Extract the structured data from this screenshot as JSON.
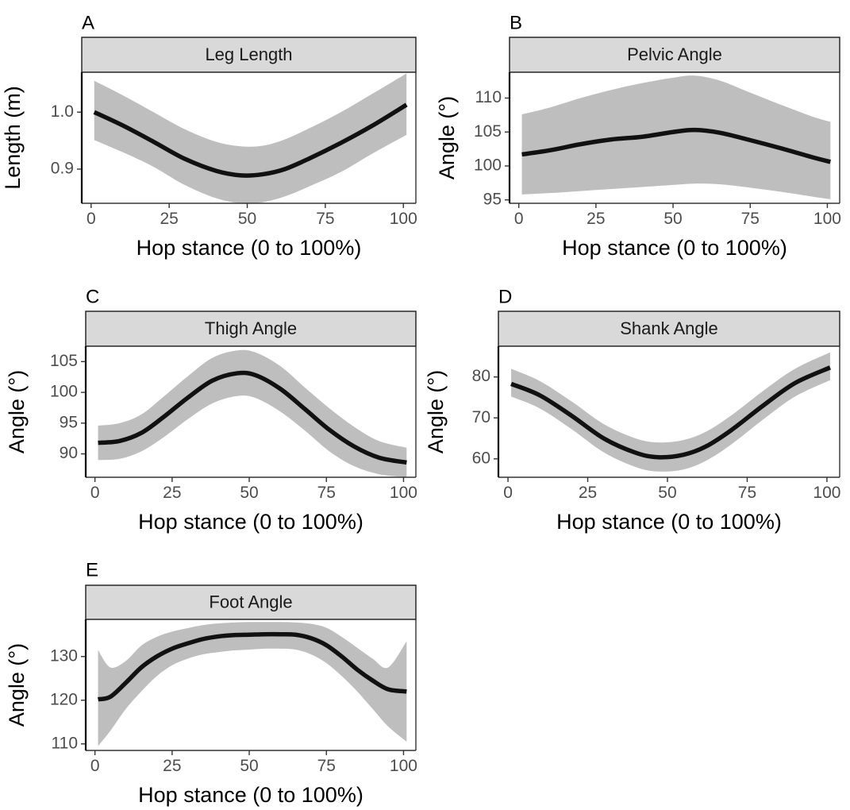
{
  "chart_data": [
    {
      "type": "line",
      "panel_label": "A",
      "title": "Leg Length",
      "xlabel": "Hop stance (0 to 100%)",
      "ylabel": "Length (m)",
      "xlim": [
        -3,
        104
      ],
      "ylim": [
        0.84,
        1.07
      ],
      "xticks": [
        0,
        25,
        50,
        75,
        100
      ],
      "xtick_labels": [
        "0",
        "25",
        "50",
        "75",
        "100"
      ],
      "yticks": [
        0.9,
        1.0
      ],
      "ytick_labels": [
        "0.9",
        "1.0"
      ],
      "grid": false,
      "series": [
        {
          "x": [
            1,
            10,
            20,
            30,
            40,
            48,
            55,
            62,
            70,
            80,
            90,
            101
          ],
          "y": [
            1.0,
            0.977,
            0.948,
            0.918,
            0.897,
            0.889,
            0.891,
            0.9,
            0.919,
            0.946,
            0.976,
            1.013
          ],
          "ci_lower": [
            0.951,
            0.93,
            0.904,
            0.872,
            0.849,
            0.84,
            0.842,
            0.852,
            0.87,
            0.895,
            0.927,
            0.96
          ],
          "ci_upper": [
            1.055,
            1.03,
            1.0,
            0.97,
            0.948,
            0.94,
            0.941,
            0.952,
            0.972,
            1.0,
            1.032,
            1.068
          ]
        }
      ]
    },
    {
      "type": "line",
      "panel_label": "B",
      "title": "Pelvic Angle",
      "xlabel": "Hop stance (0 to 100%)",
      "ylabel": "Angle  (°)",
      "xlim": [
        -3,
        104
      ],
      "ylim": [
        94.5,
        113.8
      ],
      "xticks": [
        0,
        25,
        50,
        75,
        100
      ],
      "xtick_labels": [
        "0",
        "25",
        "50",
        "75",
        "100"
      ],
      "yticks": [
        95,
        100,
        105,
        110
      ],
      "ytick_labels": [
        "95",
        "100",
        "105",
        "110"
      ],
      "grid": false,
      "series": [
        {
          "x": [
            1,
            10,
            20,
            30,
            40,
            50,
            57,
            65,
            75,
            85,
            95,
            101
          ],
          "y": [
            101.7,
            102.3,
            103.2,
            103.9,
            104.3,
            105.0,
            105.3,
            104.9,
            103.8,
            102.6,
            101.3,
            100.6
          ],
          "ci_lower": [
            95.8,
            96.0,
            96.3,
            96.6,
            96.9,
            97.2,
            97.4,
            97.3,
            96.8,
            96.2,
            95.5,
            95.1
          ],
          "ci_upper": [
            107.6,
            108.6,
            110.0,
            111.2,
            112.2,
            113.0,
            113.3,
            112.6,
            110.8,
            109.0,
            107.3,
            106.5
          ]
        }
      ]
    },
    {
      "type": "line",
      "panel_label": "C",
      "title": "Thigh Angle",
      "xlabel": "Hop stance (0 to 100%)",
      "ylabel": "Angle  (°)",
      "xlim": [
        -3,
        104
      ],
      "ylim": [
        86.2,
        107.5
      ],
      "xticks": [
        0,
        25,
        50,
        75,
        100
      ],
      "xtick_labels": [
        "0",
        "25",
        "50",
        "75",
        "100"
      ],
      "yticks": [
        90,
        95,
        100,
        105
      ],
      "ytick_labels": [
        "90",
        "95",
        "100",
        "105"
      ],
      "grid": false,
      "series": [
        {
          "x": [
            1,
            8,
            15,
            22,
            30,
            38,
            46,
            52,
            60,
            68,
            76,
            84,
            92,
            101
          ],
          "y": [
            91.8,
            92.1,
            93.4,
            95.9,
            99.1,
            101.9,
            103.1,
            102.8,
            100.6,
            97.3,
            93.9,
            91.2,
            89.4,
            88.6
          ],
          "ci_lower": [
            89.0,
            89.2,
            90.4,
            92.6,
            95.6,
            98.2,
            99.4,
            99.1,
            96.9,
            93.8,
            90.4,
            88.0,
            86.7,
            86.2
          ],
          "ci_upper": [
            94.6,
            95.0,
            96.4,
            99.2,
            102.6,
            105.6,
            106.8,
            106.5,
            104.3,
            100.8,
            97.4,
            94.4,
            92.1,
            91.0
          ]
        }
      ]
    },
    {
      "type": "line",
      "panel_label": "D",
      "title": "Shank Angle",
      "xlabel": "Hop stance (0 to 100%)",
      "ylabel": "Angle  (°)",
      "xlim": [
        -3,
        104
      ],
      "ylim": [
        55.5,
        87.5
      ],
      "xticks": [
        0,
        25,
        50,
        75,
        100
      ],
      "xtick_labels": [
        "0",
        "25",
        "50",
        "75",
        "100"
      ],
      "yticks": [
        60,
        70,
        80
      ],
      "ytick_labels": [
        "60",
        "70",
        "80"
      ],
      "grid": false,
      "series": [
        {
          "x": [
            1,
            10,
            20,
            30,
            40,
            47,
            55,
            62,
            70,
            80,
            90,
            101
          ],
          "y": [
            78.3,
            75.5,
            70.5,
            65.0,
            61.5,
            60.4,
            61.0,
            63.0,
            67.0,
            73.0,
            78.5,
            82.3
          ],
          "ci_lower": [
            75.2,
            72.3,
            67.2,
            61.6,
            58.0,
            56.9,
            57.4,
            59.5,
            63.5,
            69.6,
            75.2,
            79.2
          ],
          "ci_upper": [
            82.0,
            79.0,
            74.0,
            68.5,
            65.0,
            64.0,
            64.6,
            66.6,
            70.6,
            76.6,
            82.0,
            86.0
          ]
        }
      ]
    },
    {
      "type": "line",
      "panel_label": "E",
      "title": "Foot Angle",
      "xlabel": "Hop stance (0 to 100%)",
      "ylabel": "Angle  (°)",
      "xlim": [
        -3,
        104
      ],
      "ylim": [
        108.5,
        138.5
      ],
      "xticks": [
        0,
        25,
        50,
        75,
        100
      ],
      "xtick_labels": [
        "0",
        "25",
        "50",
        "75",
        "100"
      ],
      "yticks": [
        110,
        120,
        130
      ],
      "ytick_labels": [
        "110",
        "120",
        "130"
      ],
      "grid": false,
      "series": [
        {
          "x": [
            1,
            5,
            10,
            15,
            20,
            25,
            30,
            35,
            40,
            45,
            50,
            55,
            60,
            65,
            70,
            75,
            80,
            85,
            90,
            95,
            101
          ],
          "y": [
            120.2,
            120.8,
            124.0,
            127.5,
            130.0,
            131.8,
            133.0,
            134.0,
            134.6,
            134.9,
            135.0,
            135.1,
            135.1,
            135.0,
            134.2,
            132.6,
            130.0,
            127.0,
            124.5,
            122.5,
            122.0
          ],
          "ci_lower": [
            109.5,
            113.0,
            118.0,
            122.0,
            125.5,
            128.0,
            129.5,
            130.5,
            131.0,
            131.4,
            131.6,
            131.8,
            131.8,
            131.6,
            130.5,
            128.5,
            125.5,
            122.0,
            118.0,
            114.0,
            110.5
          ],
          "ci_upper": [
            131.5,
            127.5,
            129.0,
            132.5,
            134.5,
            135.7,
            136.5,
            137.2,
            137.6,
            137.8,
            137.9,
            137.9,
            137.9,
            137.8,
            137.5,
            136.6,
            134.5,
            132.0,
            129.5,
            127.5,
            133.5
          ]
        }
      ]
    }
  ]
}
